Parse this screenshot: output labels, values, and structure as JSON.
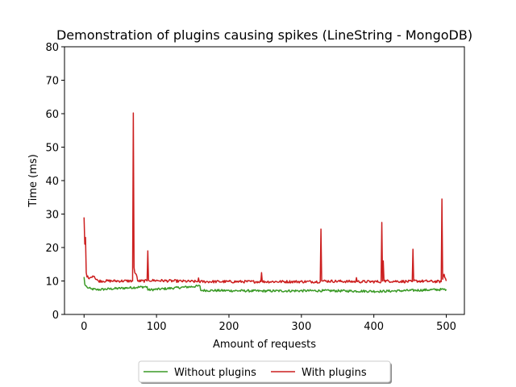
{
  "chart_data": {
    "type": "line",
    "title": "Demonstration of plugins causing spikes (LineString - MongoDB)",
    "xlabel": "Amount of requests",
    "ylabel": "Time (ms)",
    "xlim": [
      -27,
      525
    ],
    "ylim": [
      0,
      80
    ],
    "xticks": [
      0,
      100,
      200,
      300,
      400,
      500
    ],
    "yticks": [
      0,
      10,
      20,
      30,
      40,
      50,
      60,
      70,
      80
    ],
    "grid": false,
    "legend_position": "bottom-center",
    "series": [
      {
        "name": "Without plugins",
        "color": "#3a9a26",
        "base": 7.2,
        "points": [
          [
            0,
            11.2
          ],
          [
            1,
            9.0
          ],
          [
            2,
            8.6
          ],
          [
            4,
            8.2
          ],
          [
            6,
            7.9
          ],
          [
            10,
            7.6
          ],
          [
            18,
            7.4
          ],
          [
            87,
            8.3
          ],
          [
            88,
            7.3
          ],
          [
            160,
            8.5
          ],
          [
            161,
            7.2
          ],
          [
            245,
            7.0
          ],
          [
            330,
            7.1
          ],
          [
            410,
            6.9
          ],
          [
            500,
            7.5
          ]
        ]
      },
      {
        "name": "With plugins",
        "color": "#cc1f1f",
        "base": 9.8,
        "points": [
          [
            0,
            29.0
          ],
          [
            1,
            21.0
          ],
          [
            2,
            23.0
          ],
          [
            3,
            12.5
          ],
          [
            4,
            11.2
          ],
          [
            8,
            11.0
          ],
          [
            12,
            11.5
          ],
          [
            14,
            11.4
          ],
          [
            16,
            10.5
          ],
          [
            20,
            10.0
          ],
          [
            67,
            10.0
          ],
          [
            68,
            60.2
          ],
          [
            69,
            14.0
          ],
          [
            70,
            12.5
          ],
          [
            72,
            12.0
          ],
          [
            74,
            10.0
          ],
          [
            87,
            10.0
          ],
          [
            88,
            19.0
          ],
          [
            89,
            10.2
          ],
          [
            157,
            9.8
          ],
          [
            158,
            10.9
          ],
          [
            159,
            9.8
          ],
          [
            244,
            9.8
          ],
          [
            245,
            12.5
          ],
          [
            246,
            9.8
          ],
          [
            326,
            9.8
          ],
          [
            327,
            25.5
          ],
          [
            328,
            10.0
          ],
          [
            375,
            9.8
          ],
          [
            376,
            11.0
          ],
          [
            377,
            9.8
          ],
          [
            410,
            9.8
          ],
          [
            411,
            27.5
          ],
          [
            412,
            10.0
          ],
          [
            413,
            16.0
          ],
          [
            414,
            10.0
          ],
          [
            453,
            9.8
          ],
          [
            454,
            19.5
          ],
          [
            455,
            10.0
          ],
          [
            493,
            9.8
          ],
          [
            494,
            34.5
          ],
          [
            495,
            10.5
          ],
          [
            497,
            12.0
          ],
          [
            500,
            10.0
          ]
        ]
      }
    ]
  }
}
